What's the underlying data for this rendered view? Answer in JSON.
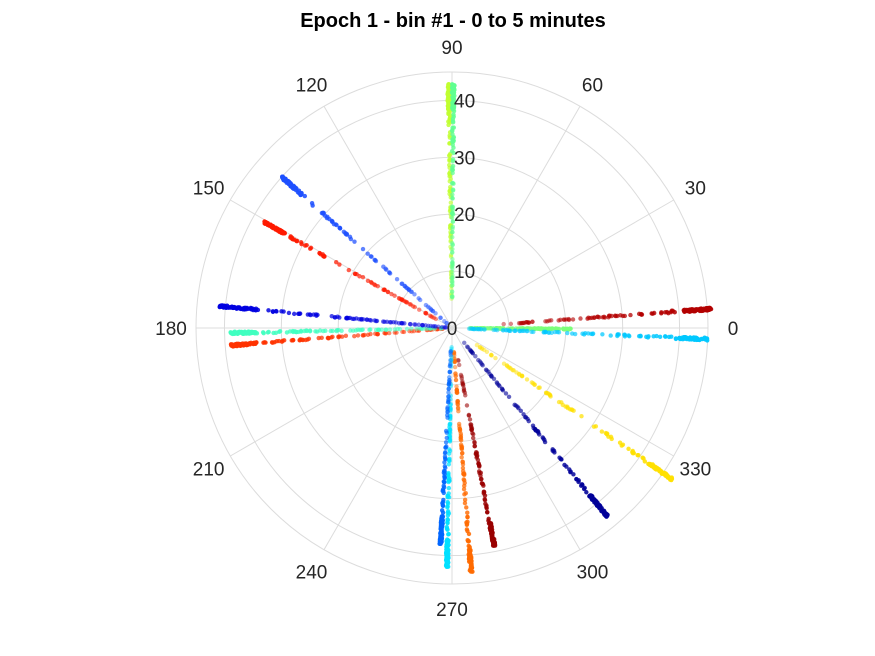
{
  "chart_data": {
    "type": "scatter",
    "projection": "polar",
    "title": "Epoch 1 - bin #1 - 0 to 5 minutes",
    "theta_unit": "degrees",
    "r_range": [
      0,
      45
    ],
    "r_ticks": [
      0,
      10,
      20,
      30,
      40
    ],
    "r_tick_labels": [
      "0",
      "10",
      "20",
      "30",
      "40"
    ],
    "theta_ticks": [
      0,
      30,
      60,
      90,
      120,
      150,
      180,
      210,
      240,
      270,
      300,
      330
    ],
    "theta_tick_labels": [
      "0",
      "30",
      "60",
      "90",
      "120",
      "150",
      "180",
      "210",
      "240",
      "270",
      "300",
      "330"
    ],
    "grid": true,
    "series": [
      {
        "theta": 4.2,
        "r_range": [
          9,
          46
        ],
        "color": "#b30000",
        "dense_end": true
      },
      {
        "theta": 359.5,
        "r_range": [
          3,
          21
        ],
        "color": "#7cff7a"
      },
      {
        "theta": 357.5,
        "r_range": [
          3,
          45
        ],
        "color": "#00c8ff",
        "dense_end": true
      },
      {
        "theta": 325.5,
        "r_range": [
          5,
          47
        ],
        "color": "#ffe000",
        "dense_end": true
      },
      {
        "theta": 309.5,
        "r_range": [
          2,
          43
        ],
        "color": "#000099",
        "dense_end": true
      },
      {
        "theta": 281.0,
        "r_range": [
          5,
          39
        ],
        "color": "#990000",
        "dense_end": true
      },
      {
        "theta": 274.5,
        "r_range": [
          4,
          43
        ],
        "color": "#ff6a00",
        "dense_end": true
      },
      {
        "theta": 268.8,
        "r_range": [
          3,
          42
        ],
        "color": "#00e0ff",
        "dense_end": true
      },
      {
        "theta": 267.0,
        "r_range": [
          3,
          38
        ],
        "color": "#0066ff",
        "dense_end": true
      },
      {
        "theta": 184.5,
        "r_range": [
          1,
          39
        ],
        "color": "#ff3300",
        "dense_end": true
      },
      {
        "theta": 181.3,
        "r_range": [
          1,
          39
        ],
        "color": "#40ffc0",
        "dense_end": true
      },
      {
        "theta": 174.6,
        "r_range": [
          1,
          41
        ],
        "color": "#0000e0",
        "dense_end": true
      },
      {
        "theta": 150.6,
        "r_range": [
          3,
          38
        ],
        "color": "#ff1a00",
        "dense_end": true
      },
      {
        "theta": 138.4,
        "r_range": [
          1,
          40
        ],
        "color": "#1e50ff",
        "dense_end": true
      },
      {
        "theta": 90.8,
        "r_range": [
          5,
          43
        ],
        "color": "#c0ff30",
        "dense_end": true
      },
      {
        "theta": 89.7,
        "r_range": [
          5,
          43
        ],
        "color": "#60ff90",
        "dense_end": true
      }
    ]
  }
}
